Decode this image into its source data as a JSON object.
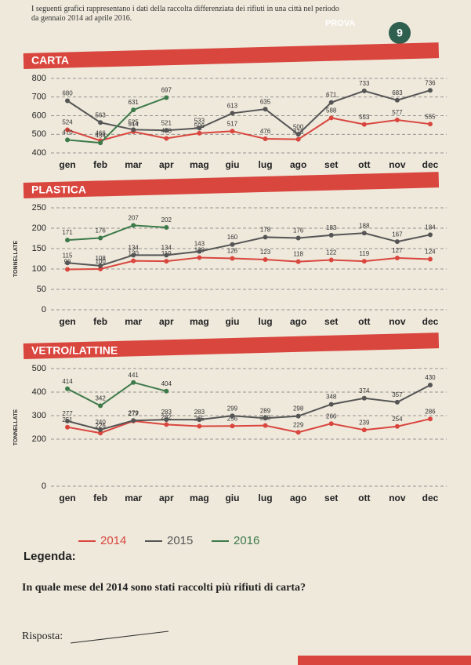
{
  "header": {
    "text": "I seguenti grafici rappresentano i dati della raccolta differenziata dei rifiuti in una città nel periodo da gennaio 2014 ad aprile 2016.",
    "badge": "PROVA",
    "number": "9"
  },
  "chart_data": [
    {
      "type": "line",
      "title": "CARTA",
      "categories": [
        "gen",
        "feb",
        "mar",
        "apr",
        "mag",
        "giu",
        "lug",
        "ago",
        "set",
        "ott",
        "nov",
        "dec"
      ],
      "ylim": [
        400,
        800
      ],
      "yticks": [
        400,
        500,
        600,
        700,
        800
      ],
      "grid": true,
      "series": [
        {
          "name": "2014",
          "color": "#d9463e",
          "values": [
            524,
            466,
            514,
            478,
            506,
            517,
            476,
            473,
            588,
            553,
            577,
            555
          ]
        },
        {
          "name": "2015",
          "color": "#555555",
          "values": [
            680,
            563,
            525,
            521,
            533,
            613,
            635,
            500,
            671,
            733,
            683,
            736
          ]
        },
        {
          "name": "2016",
          "color": "#3d7a4a",
          "values": [
            470,
            454,
            631,
            697,
            null,
            null,
            null,
            null,
            null,
            null,
            null,
            null
          ]
        }
      ]
    },
    {
      "type": "line",
      "title": "PLASTICA",
      "ylabel": "TONNELLATE",
      "categories": [
        "gen",
        "feb",
        "mar",
        "apr",
        "mag",
        "giu",
        "lug",
        "ago",
        "set",
        "ott",
        "nov",
        "dec"
      ],
      "ylim": [
        0,
        250
      ],
      "yticks": [
        0,
        50,
        100,
        150,
        200,
        250
      ],
      "grid": true,
      "series": [
        {
          "name": "2014",
          "color": "#d9463e",
          "values": [
            99,
            100,
            120,
            119,
            128,
            126,
            123,
            118,
            122,
            119,
            127,
            124
          ]
        },
        {
          "name": "2015",
          "color": "#555555",
          "values": [
            115,
            108,
            134,
            134,
            143,
            160,
            178,
            176,
            183,
            188,
            167,
            184
          ]
        },
        {
          "name": "2016",
          "color": "#3d7a4a",
          "values": [
            171,
            176,
            207,
            202,
            null,
            null,
            null,
            null,
            null,
            null,
            null,
            null
          ]
        }
      ]
    },
    {
      "type": "line",
      "title": "VETRO/LATTINE",
      "ylabel": "TONNELLATE",
      "categories": [
        "gen",
        "feb",
        "mar",
        "apr",
        "mag",
        "giu",
        "lug",
        "ago",
        "set",
        "ott",
        "nov",
        "dec"
      ],
      "ylim": [
        0,
        500
      ],
      "yticks": [
        0,
        200,
        300,
        400,
        500
      ],
      "grid": true,
      "series": [
        {
          "name": "2014",
          "color": "#d9463e",
          "values": [
            251,
            226,
            277,
            262,
            255,
            256,
            258,
            229,
            266,
            239,
            254,
            286
          ]
        },
        {
          "name": "2015",
          "color": "#555555",
          "values": [
            277,
            240,
            279,
            283,
            283,
            299,
            289,
            298,
            348,
            374,
            357,
            430
          ]
        },
        {
          "name": "2016",
          "color": "#3d7a4a",
          "values": [
            414,
            342,
            441,
            404,
            null,
            null,
            null,
            null,
            null,
            null,
            null,
            null
          ]
        }
      ]
    }
  ],
  "legend": {
    "title": "Legenda:"
  },
  "question": {
    "text": "In quale mese del 2014 sono stati raccolti più rifiuti di carta?",
    "answer_label": "Risposta:"
  }
}
